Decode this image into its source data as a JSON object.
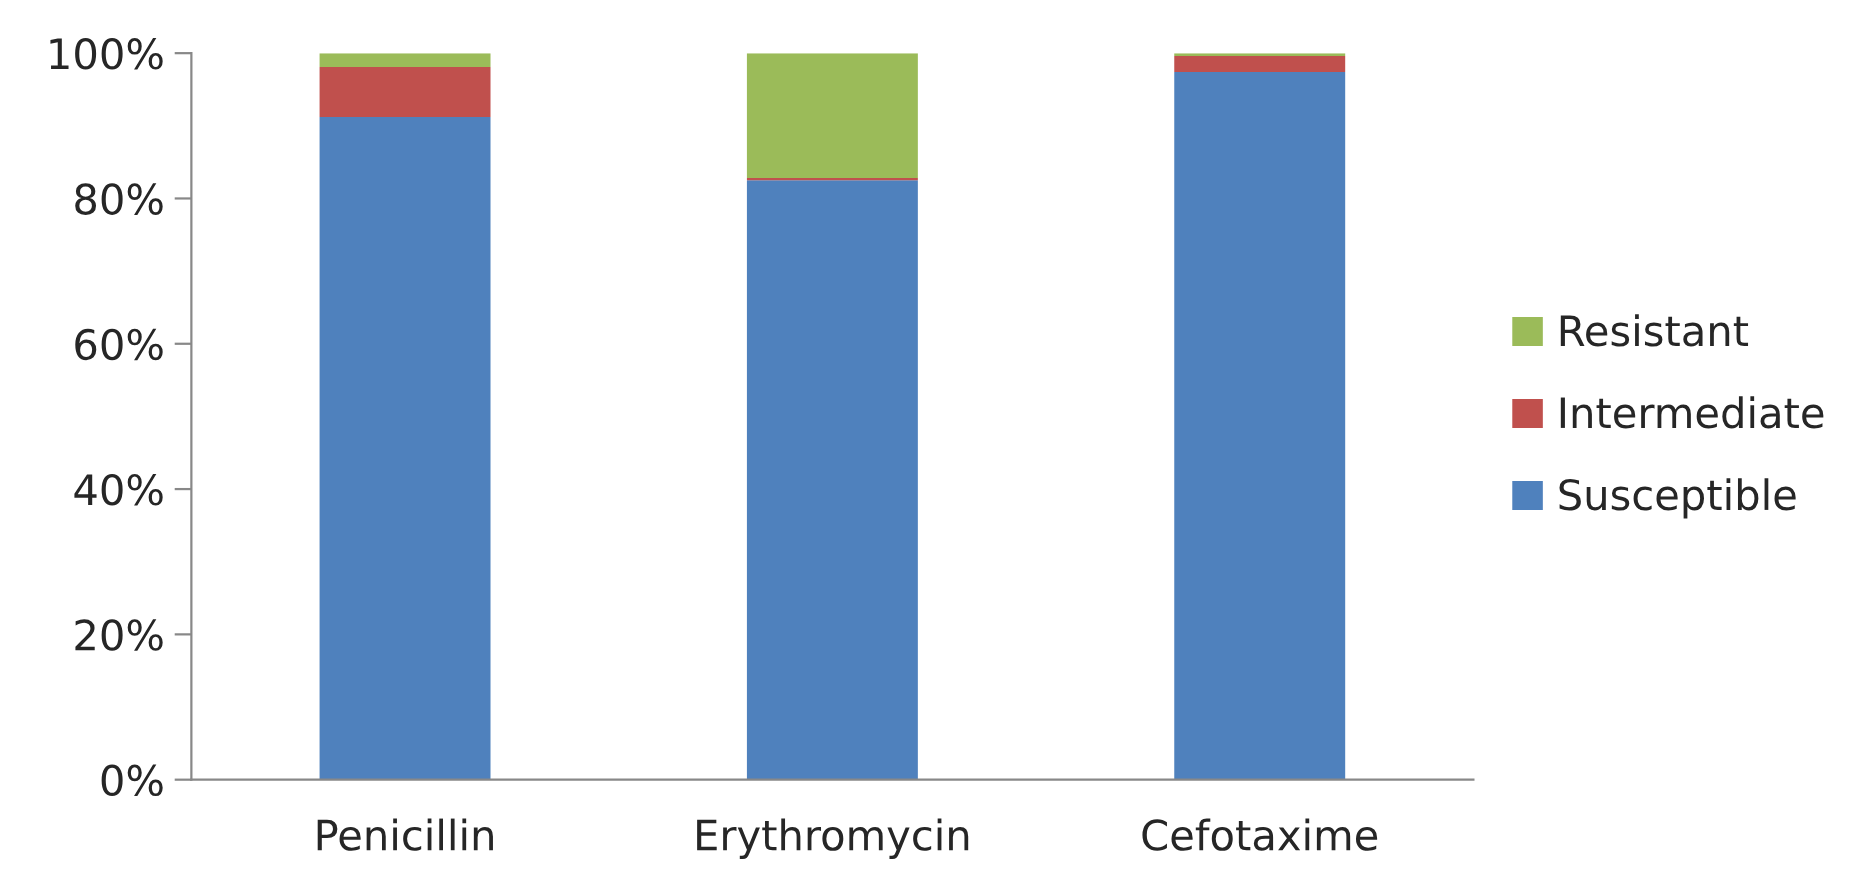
{
  "chart_data": {
    "type": "bar",
    "stacked": true,
    "categories": [
      "Penicillin",
      "Erythromycin",
      "Cefotaxime"
    ],
    "series": [
      {
        "name": "Susceptible",
        "color": "#4f81bd",
        "values": [
          91.2,
          82.5,
          97.4
        ]
      },
      {
        "name": "Intermediate",
        "color": "#c0504d",
        "values": [
          6.9,
          0.3,
          2.2
        ]
      },
      {
        "name": "Resistant",
        "color": "#9bbb59",
        "values": [
          1.9,
          17.2,
          0.4
        ]
      }
    ],
    "ylim": [
      0,
      100
    ],
    "yticks": [
      {
        "value": 0,
        "label": "0%"
      },
      {
        "value": 20,
        "label": "20%"
      },
      {
        "value": 40,
        "label": "40%"
      },
      {
        "value": 60,
        "label": "60%"
      },
      {
        "value": 80,
        "label": "80%"
      },
      {
        "value": 100,
        "label": "100%"
      }
    ],
    "grid": false,
    "legend": "right"
  }
}
